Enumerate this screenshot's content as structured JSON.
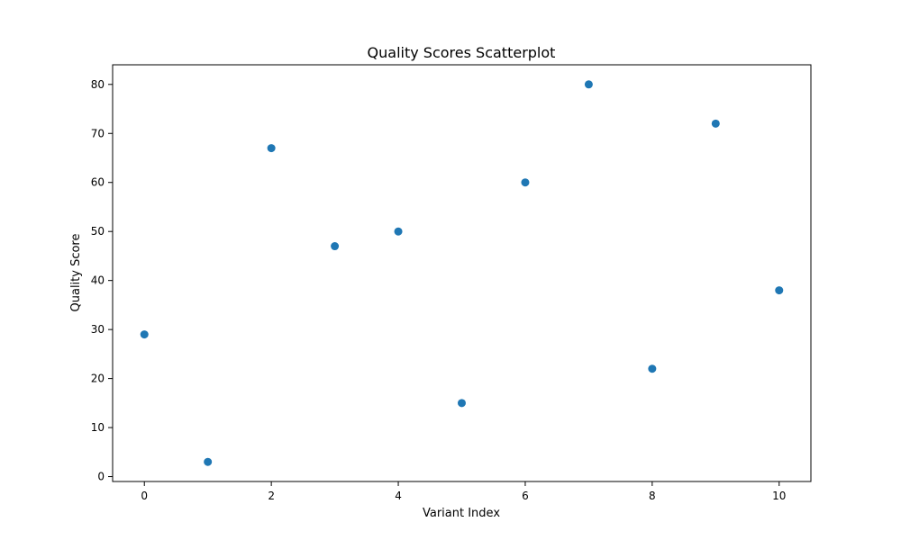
{
  "chart_data": {
    "type": "scatter",
    "title": "Quality Scores Scatterplot",
    "xlabel": "Variant Index",
    "ylabel": "Quality Score",
    "x": [
      0,
      1,
      2,
      3,
      4,
      5,
      6,
      7,
      8,
      9,
      10
    ],
    "y": [
      29,
      3,
      67,
      47,
      50,
      15,
      60,
      80,
      22,
      72,
      38
    ],
    "xlim": [
      -0.5,
      10.5
    ],
    "ylim": [
      -1,
      84
    ],
    "xticks": [
      0,
      2,
      4,
      6,
      8,
      10
    ],
    "yticks": [
      0,
      10,
      20,
      30,
      40,
      50,
      60,
      70,
      80
    ],
    "grid": false,
    "marker_color": "#1f77b4"
  }
}
